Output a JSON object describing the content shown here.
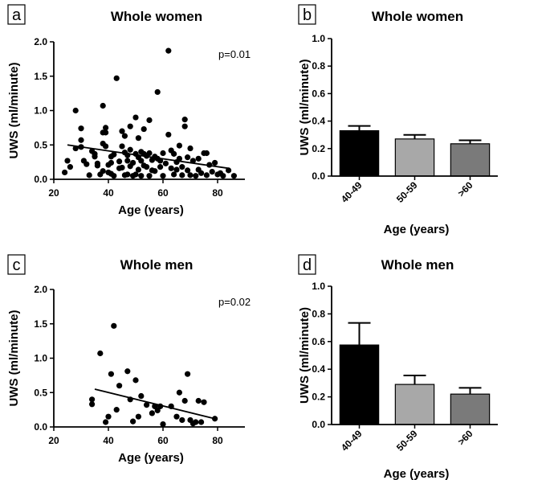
{
  "chart_data": [
    {
      "id": "a",
      "panel_label": "a",
      "type": "scatter",
      "title": "Whole women",
      "xlabel": "Age (years)",
      "ylabel": "UWS (ml/minute)",
      "xlim": [
        20,
        90
      ],
      "ylim": [
        0,
        2.0
      ],
      "xticks": [
        20,
        40,
        60,
        80
      ],
      "yticks": [
        "0.0",
        "0.5",
        "1.0",
        "1.5",
        "2.0"
      ],
      "annotation": "p=0.01",
      "trend": {
        "x1": 25,
        "y1": 0.5,
        "x2": 84,
        "y2": 0.16
      },
      "points": [
        [
          24,
          0.1
        ],
        [
          25,
          0.27
        ],
        [
          26,
          0.18
        ],
        [
          28,
          0.45
        ],
        [
          28,
          1.0
        ],
        [
          30,
          0.47
        ],
        [
          30,
          0.57
        ],
        [
          30,
          0.74
        ],
        [
          31,
          0.27
        ],
        [
          32,
          0.22
        ],
        [
          33,
          0.06
        ],
        [
          34,
          0.41
        ],
        [
          35,
          0.37
        ],
        [
          35,
          0.33
        ],
        [
          36,
          0.2
        ],
        [
          36,
          0.23
        ],
        [
          37,
          0.07
        ],
        [
          38,
          0.52
        ],
        [
          38,
          0.68
        ],
        [
          38,
          1.07
        ],
        [
          38,
          0.12
        ],
        [
          39,
          0.48
        ],
        [
          39,
          0.68
        ],
        [
          39,
          0.75
        ],
        [
          40,
          0.21
        ],
        [
          40,
          0.1
        ],
        [
          41,
          0.24
        ],
        [
          41,
          0.08
        ],
        [
          41,
          0.33
        ],
        [
          42,
          0.36
        ],
        [
          42,
          0.05
        ],
        [
          43,
          1.47
        ],
        [
          44,
          0.26
        ],
        [
          44,
          0.16
        ],
        [
          45,
          0.7
        ],
        [
          45,
          0.48
        ],
        [
          45,
          0.17
        ],
        [
          46,
          0.39
        ],
        [
          46,
          0.06
        ],
        [
          46,
          0.63
        ],
        [
          47,
          0.07
        ],
        [
          47,
          0.27
        ],
        [
          47,
          0.35
        ],
        [
          48,
          0.43
        ],
        [
          48,
          0.19
        ],
        [
          48,
          0.77
        ],
        [
          49,
          0.05
        ],
        [
          49,
          0.24
        ],
        [
          50,
          0.9
        ],
        [
          50,
          0.37
        ],
        [
          50,
          0.07
        ],
        [
          51,
          0.6
        ],
        [
          51,
          0.32
        ],
        [
          51,
          0.14
        ],
        [
          52,
          0.4
        ],
        [
          52,
          0.27
        ],
        [
          52,
          0.05
        ],
        [
          53,
          0.2
        ],
        [
          53,
          0.37
        ],
        [
          53,
          0.73
        ],
        [
          54,
          0.18
        ],
        [
          54,
          0.34
        ],
        [
          55,
          0.86
        ],
        [
          55,
          0.05
        ],
        [
          55,
          0.38
        ],
        [
          56,
          0.28
        ],
        [
          56,
          0.13
        ],
        [
          57,
          0.33
        ],
        [
          57,
          0.12
        ],
        [
          58,
          1.27
        ],
        [
          58,
          0.3
        ],
        [
          59,
          0.18
        ],
        [
          59,
          0.27
        ],
        [
          60,
          0.38
        ],
        [
          60,
          0.05
        ],
        [
          61,
          0.23
        ],
        [
          62,
          0.65
        ],
        [
          62,
          1.87
        ],
        [
          63,
          0.16
        ],
        [
          63,
          0.42
        ],
        [
          64,
          0.37
        ],
        [
          64,
          0.07
        ],
        [
          65,
          0.14
        ],
        [
          65,
          0.25
        ],
        [
          66,
          0.49
        ],
        [
          66,
          0.3
        ],
        [
          67,
          0.18
        ],
        [
          67,
          0.06
        ],
        [
          68,
          0.87
        ],
        [
          68,
          0.77
        ],
        [
          69,
          0.13
        ],
        [
          69,
          0.32
        ],
        [
          70,
          0.06
        ],
        [
          70,
          0.45
        ],
        [
          71,
          0.27
        ],
        [
          72,
          0.05
        ],
        [
          73,
          0.3
        ],
        [
          73,
          0.14
        ],
        [
          74,
          0.09
        ],
        [
          75,
          0.38
        ],
        [
          76,
          0.38
        ],
        [
          76,
          0.06
        ],
        [
          77,
          0.21
        ],
        [
          78,
          0.11
        ],
        [
          79,
          0.24
        ],
        [
          80,
          0.07
        ],
        [
          81,
          0.09
        ],
        [
          82,
          0.05
        ],
        [
          84,
          0.13
        ],
        [
          86,
          0.05
        ]
      ]
    },
    {
      "id": "b",
      "panel_label": "b",
      "type": "bar",
      "title": "Whole women",
      "xlabel": "Age (years)",
      "ylabel": "UWS (ml/minute)",
      "ylim": [
        0,
        1.0
      ],
      "yticks": [
        "0.0",
        "0.2",
        "0.4",
        "0.6",
        "0.8",
        "1.0"
      ],
      "categories": [
        "40-49",
        "50-59",
        ">60"
      ],
      "values": [
        0.33,
        0.27,
        0.235
      ],
      "errors": [
        0.035,
        0.03,
        0.025
      ],
      "colors": [
        "#000000",
        "#a8a8a8",
        "#7a7a7a"
      ]
    },
    {
      "id": "c",
      "panel_label": "c",
      "type": "scatter",
      "title": "Whole men",
      "xlabel": "Age (years)",
      "ylabel": "UWS (ml/minute)",
      "xlim": [
        20,
        90
      ],
      "ylim": [
        0,
        2.0
      ],
      "xticks": [
        20,
        40,
        60,
        80
      ],
      "yticks": [
        "0.0",
        "0.5",
        "1.0",
        "1.5",
        "2.0"
      ],
      "annotation": "p=0.02",
      "trend": {
        "x1": 35,
        "y1": 0.55,
        "x2": 79,
        "y2": 0.12
      },
      "points": [
        [
          34,
          0.4
        ],
        [
          34,
          0.33
        ],
        [
          37,
          1.07
        ],
        [
          39,
          0.07
        ],
        [
          40,
          0.15
        ],
        [
          41,
          0.77
        ],
        [
          42,
          1.47
        ],
        [
          43,
          0.25
        ],
        [
          44,
          0.6
        ],
        [
          47,
          0.81
        ],
        [
          48,
          0.4
        ],
        [
          49,
          0.08
        ],
        [
          50,
          0.68
        ],
        [
          51,
          0.15
        ],
        [
          52,
          0.45
        ],
        [
          54,
          0.32
        ],
        [
          56,
          0.2
        ],
        [
          57,
          0.3
        ],
        [
          58,
          0.24
        ],
        [
          59,
          0.3
        ],
        [
          60,
          0.04
        ],
        [
          63,
          0.3
        ],
        [
          65,
          0.15
        ],
        [
          66,
          0.5
        ],
        [
          67,
          0.1
        ],
        [
          68,
          0.38
        ],
        [
          69,
          0.77
        ],
        [
          70,
          0.1
        ],
        [
          71,
          0.05
        ],
        [
          72,
          0.07
        ],
        [
          73,
          0.38
        ],
        [
          74,
          0.07
        ],
        [
          75,
          0.36
        ],
        [
          79,
          0.12
        ]
      ]
    },
    {
      "id": "d",
      "panel_label": "d",
      "type": "bar",
      "title": "Whole men",
      "xlabel": "Age (years)",
      "ylabel": "UWS (ml/minute)",
      "ylim": [
        0,
        1.0
      ],
      "yticks": [
        "0.0",
        "0.2",
        "0.4",
        "0.6",
        "0.8",
        "1.0"
      ],
      "categories": [
        "40-49",
        "50-59",
        ">60"
      ],
      "values": [
        0.575,
        0.29,
        0.22
      ],
      "errors": [
        0.16,
        0.065,
        0.045
      ],
      "colors": [
        "#000000",
        "#a8a8a8",
        "#7a7a7a"
      ]
    }
  ]
}
